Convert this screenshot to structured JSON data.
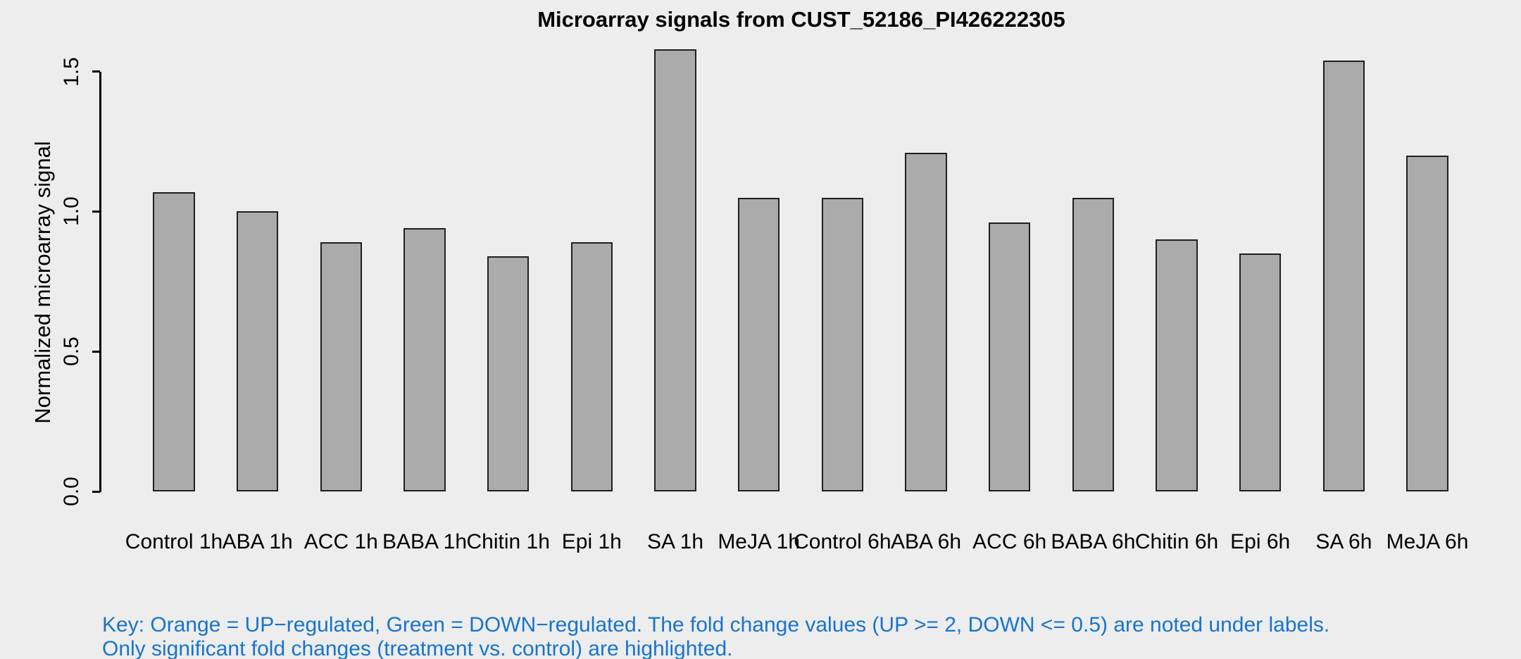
{
  "title": "Microarray signals from CUST_52186_PI426222305",
  "chart_data": {
    "type": "bar",
    "title": "Microarray signals from CUST_52186_PI426222305",
    "categories": [
      "Control 1h",
      "ABA 1h",
      "ACC 1h",
      "BABA 1h",
      "Chitin 1h",
      "Epi 1h",
      "SA 1h",
      "MeJA 1h",
      "Control 6h",
      "ABA 6h",
      "ACC 6h",
      "BABA 6h",
      "Chitin 6h",
      "Epi 6h",
      "SA 6h",
      "MeJA 6h"
    ],
    "values": [
      1.07,
      1.0,
      0.89,
      0.94,
      0.84,
      0.89,
      1.58,
      1.05,
      1.05,
      1.21,
      0.96,
      1.05,
      0.9,
      0.85,
      1.54,
      1.2
    ],
    "xlabel": "",
    "ylabel": "Normalized microarray signal",
    "ylim": [
      0,
      1.58
    ],
    "yticks": [
      0.0,
      0.5,
      1.0,
      1.5
    ],
    "ytick_labels": [
      "0.0",
      "0.5",
      "1.0",
      "1.5"
    ],
    "grid": false,
    "legend_position": "none",
    "bar_fill_color": "#ABABAB",
    "bar_border_color": "#1F1F1F"
  },
  "footnote": {
    "line1": "Key: Orange = UP−regulated, Green = DOWN−regulated. The fold change values (UP >= 2, DOWN <= 0.5) are noted under labels.",
    "line2": "Only significant fold changes (treatment vs. control) are highlighted.",
    "text_color": "#1874CD"
  },
  "colors": {
    "background": "#EDEDED",
    "axis": "#000000",
    "title_text": "#000000"
  }
}
